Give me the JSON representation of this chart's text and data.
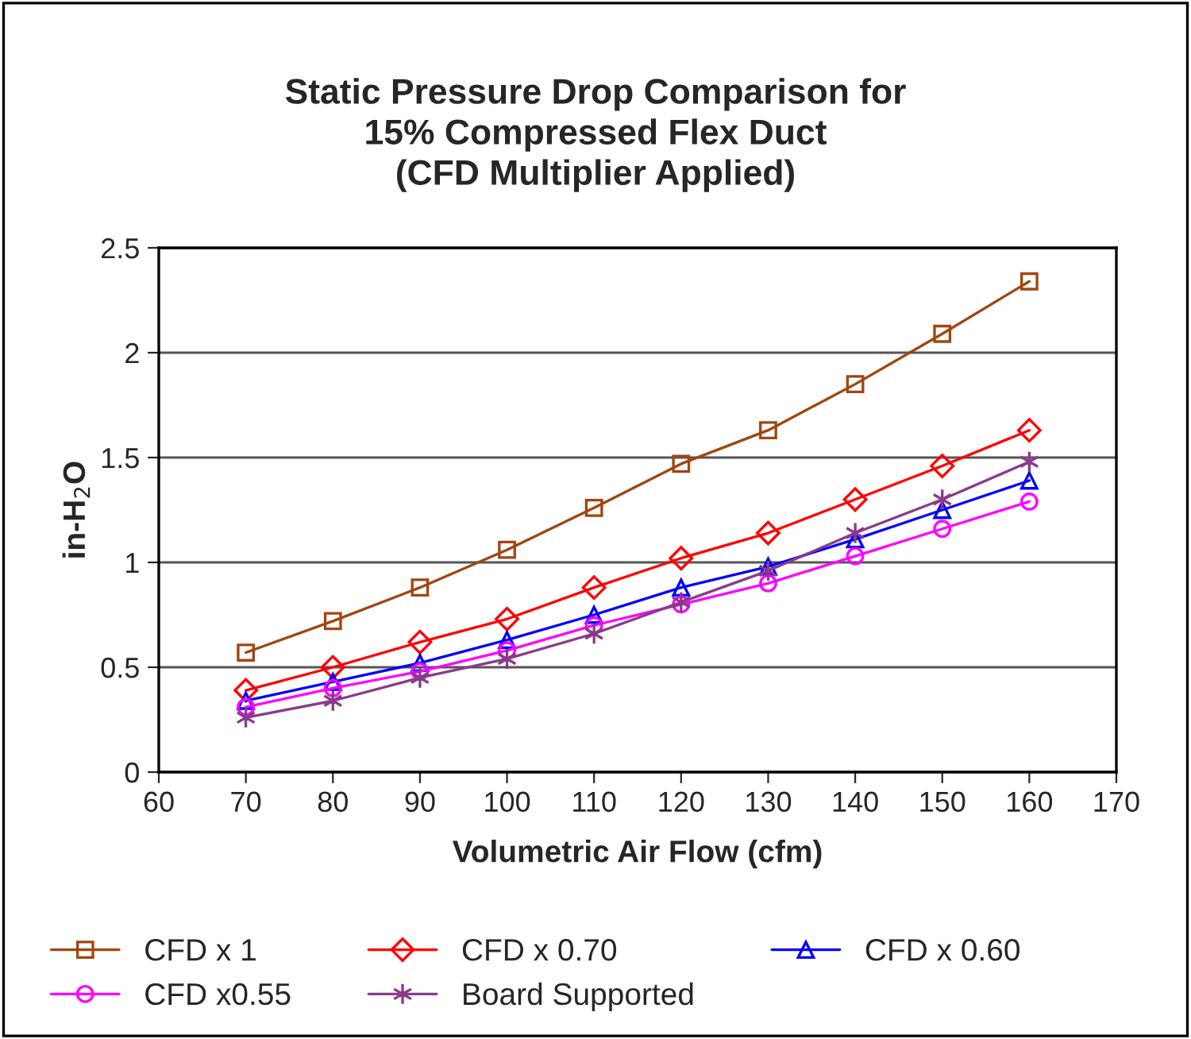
{
  "chart_data": {
    "type": "line",
    "title": "Static Pressure Drop Comparison for\n15% Compressed Flex Duct\n(CFD Multiplier Applied)",
    "xlabel": "Volumetric Air Flow (cfm)",
    "ylabel": "in-H$_{2}$O",
    "x": [
      70,
      80,
      90,
      100,
      110,
      120,
      130,
      140,
      150,
      160
    ],
    "series": [
      {
        "name": "CFD x 1",
        "color": "#a0460f",
        "marker": "square",
        "values": [
          0.57,
          0.72,
          0.88,
          1.06,
          1.26,
          1.47,
          1.63,
          1.85,
          2.09,
          2.34
        ]
      },
      {
        "name": "CFD x 0.70",
        "color": "#ff0000",
        "marker": "diamond",
        "values": [
          0.39,
          0.5,
          0.62,
          0.73,
          0.88,
          1.02,
          1.14,
          1.3,
          1.46,
          1.63
        ]
      },
      {
        "name": "CFD x 0.60",
        "color": "#0000ff",
        "marker": "triangle",
        "values": [
          0.34,
          0.43,
          0.52,
          0.63,
          0.75,
          0.88,
          0.98,
          1.11,
          1.25,
          1.39
        ]
      },
      {
        "name": "CFD x0.55",
        "color": "#ff00ff",
        "marker": "circle",
        "values": [
          0.31,
          0.4,
          0.48,
          0.58,
          0.7,
          0.8,
          0.9,
          1.03,
          1.16,
          1.29
        ]
      },
      {
        "name": "Board Supported",
        "color": "#8b3a8b",
        "marker": "cross",
        "values": [
          0.26,
          0.34,
          0.45,
          0.54,
          0.66,
          0.81,
          0.96,
          1.14,
          1.3,
          1.48
        ]
      }
    ],
    "xlim": [
      60,
      170
    ],
    "xticks": [
      60,
      70,
      80,
      90,
      100,
      110,
      120,
      130,
      140,
      150,
      160,
      170
    ],
    "ylim": [
      0,
      2.5
    ],
    "yticks": [
      0,
      0.5,
      1,
      1.5,
      2,
      2.5
    ],
    "grid": "y",
    "legend": "bottom",
    "line_style": "solid"
  }
}
